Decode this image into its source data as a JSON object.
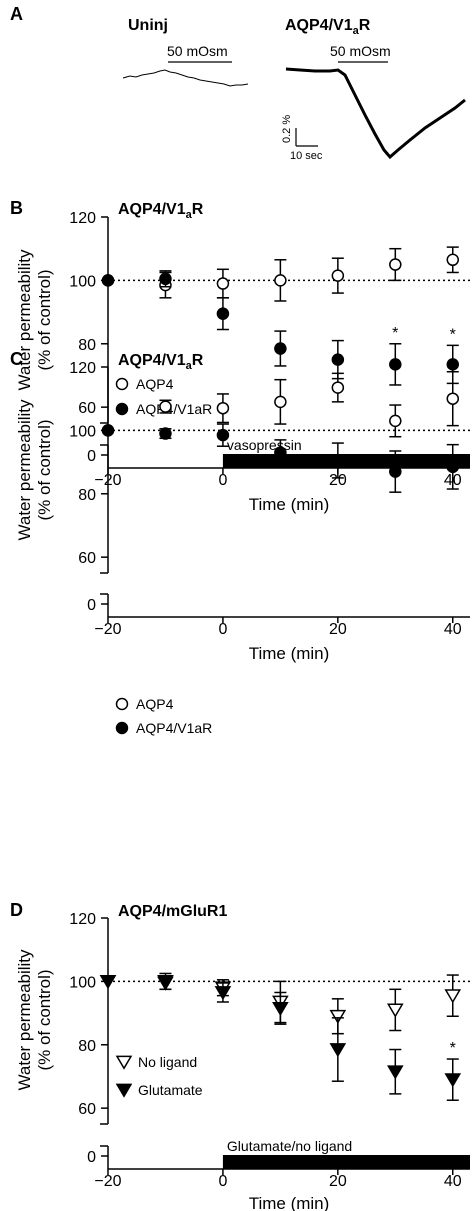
{
  "panel_a": {
    "letter": "A",
    "left_label": "Uninj",
    "right_label": "AQP4/V1",
    "right_label_sub": "a",
    "right_label_tail": "R",
    "stim_left": "50 mOsm",
    "stim_right": "50 mOsm",
    "scale_y": "0.2 %",
    "scale_x": "10 sec"
  },
  "chart_data": [
    {
      "type": "scatter",
      "letter": "B",
      "title": "AQP4/V1",
      "title_sub": "a",
      "title_tail": "R",
      "xlabel": "Time (min)",
      "ylabel": [
        "Water permeability",
        "(% of control)"
      ],
      "xlim": [
        -20,
        43
      ],
      "ylim": [
        55,
        120
      ],
      "x_ticks": [
        -20,
        0,
        20,
        40
      ],
      "y_ticks": [
        60,
        80,
        100,
        120
      ],
      "extra_tick": 0,
      "reference_line": 100,
      "bar": {
        "label": "vasopressin",
        "x_start": 0,
        "x_end": 43
      },
      "legend": [
        "AQP4",
        "AQP4/V1aR"
      ],
      "annotations": [
        {
          "x": 30,
          "text": "*"
        },
        {
          "x": 40,
          "text": "*"
        }
      ],
      "series": [
        {
          "name": "AQP4",
          "marker": "circle-open",
          "x": [
            -20,
            -10,
            0,
            10,
            20,
            30,
            40
          ],
          "y": [
            100,
            98.5,
            99,
            100,
            101.5,
            105,
            106.5
          ],
          "err": [
            0,
            4,
            4.5,
            6.5,
            5.5,
            5,
            4
          ]
        },
        {
          "name": "AQP4/V1aR",
          "marker": "circle-filled",
          "x": [
            -20,
            -10,
            0,
            10,
            20,
            30,
            40
          ],
          "y": [
            100,
            100.5,
            89.5,
            78.5,
            75,
            73.5,
            73.5
          ],
          "err": [
            0,
            2.5,
            5,
            5.5,
            6,
            6.5,
            6
          ]
        }
      ]
    },
    {
      "type": "scatter",
      "letter": "C",
      "title": "AQP4/V1",
      "title_sub": "a",
      "title_tail": "R",
      "xlabel": "Time (min)",
      "ylabel": [
        "Water permeability",
        "(% of control)"
      ],
      "xlim": [
        -20,
        43
      ],
      "ylim": [
        55,
        120
      ],
      "x_ticks": [
        -20,
        0,
        20,
        40
      ],
      "y_ticks": [
        60,
        80,
        100,
        120
      ],
      "extra_tick": 0,
      "reference_line": 100,
      "legend": [
        "AQP4",
        "AQP4/V1aR"
      ],
      "annotations": [],
      "series": [
        {
          "name": "AQP4",
          "marker": "circle-open",
          "x": [
            -20,
            -10,
            0,
            10,
            20,
            30,
            40
          ],
          "y": [
            100,
            107.5,
            107,
            109,
            113.5,
            103,
            110
          ],
          "err": [
            0,
            2,
            4.5,
            7,
            4.5,
            5,
            8.5
          ]
        },
        {
          "name": "AQP4/V1aR",
          "marker": "circle-filled",
          "x": [
            -20,
            -10,
            0,
            10,
            20,
            30,
            40
          ],
          "y": [
            100,
            99,
            98.5,
            93,
            90.5,
            87,
            88.5
          ],
          "err": [
            0,
            1.5,
            3.5,
            4,
            5.5,
            6.5,
            7
          ]
        }
      ]
    },
    {
      "type": "scatter",
      "letter": "D",
      "title": "AQP4/mGluR1",
      "title_sub": "",
      "title_tail": "",
      "xlabel": "Time (min)",
      "ylabel": [
        "Water permeability",
        "(% of control)"
      ],
      "xlim": [
        -20,
        43
      ],
      "ylim": [
        55,
        120
      ],
      "x_ticks": [
        -20,
        0,
        20,
        40
      ],
      "y_ticks": [
        60,
        80,
        100,
        120
      ],
      "extra_tick": 0,
      "reference_line": 100,
      "bar": {
        "label": "Glutamate/no ligand",
        "x_start": 0,
        "x_end": 43
      },
      "legend": [
        "No ligand",
        "Glutamate"
      ],
      "annotations": [
        {
          "x": 40,
          "text": "*"
        }
      ],
      "series": [
        {
          "name": "No ligand",
          "marker": "triangle-open",
          "x": [
            -20,
            -10,
            0,
            10,
            20,
            30,
            40
          ],
          "y": [
            100,
            100,
            98,
            93.5,
            89,
            91,
            95.5
          ],
          "err": [
            0,
            2.5,
            2.5,
            6.5,
            5.5,
            6.5,
            6.5
          ]
        },
        {
          "name": "Glutamate",
          "marker": "triangle-filled",
          "x": [
            -20,
            -10,
            0,
            10,
            20,
            30,
            40
          ],
          "y": [
            100,
            99.5,
            96.5,
            91.5,
            78.5,
            71.5,
            69
          ],
          "err": [
            0,
            2,
            3,
            5,
            10,
            7,
            6.5
          ]
        }
      ]
    }
  ]
}
